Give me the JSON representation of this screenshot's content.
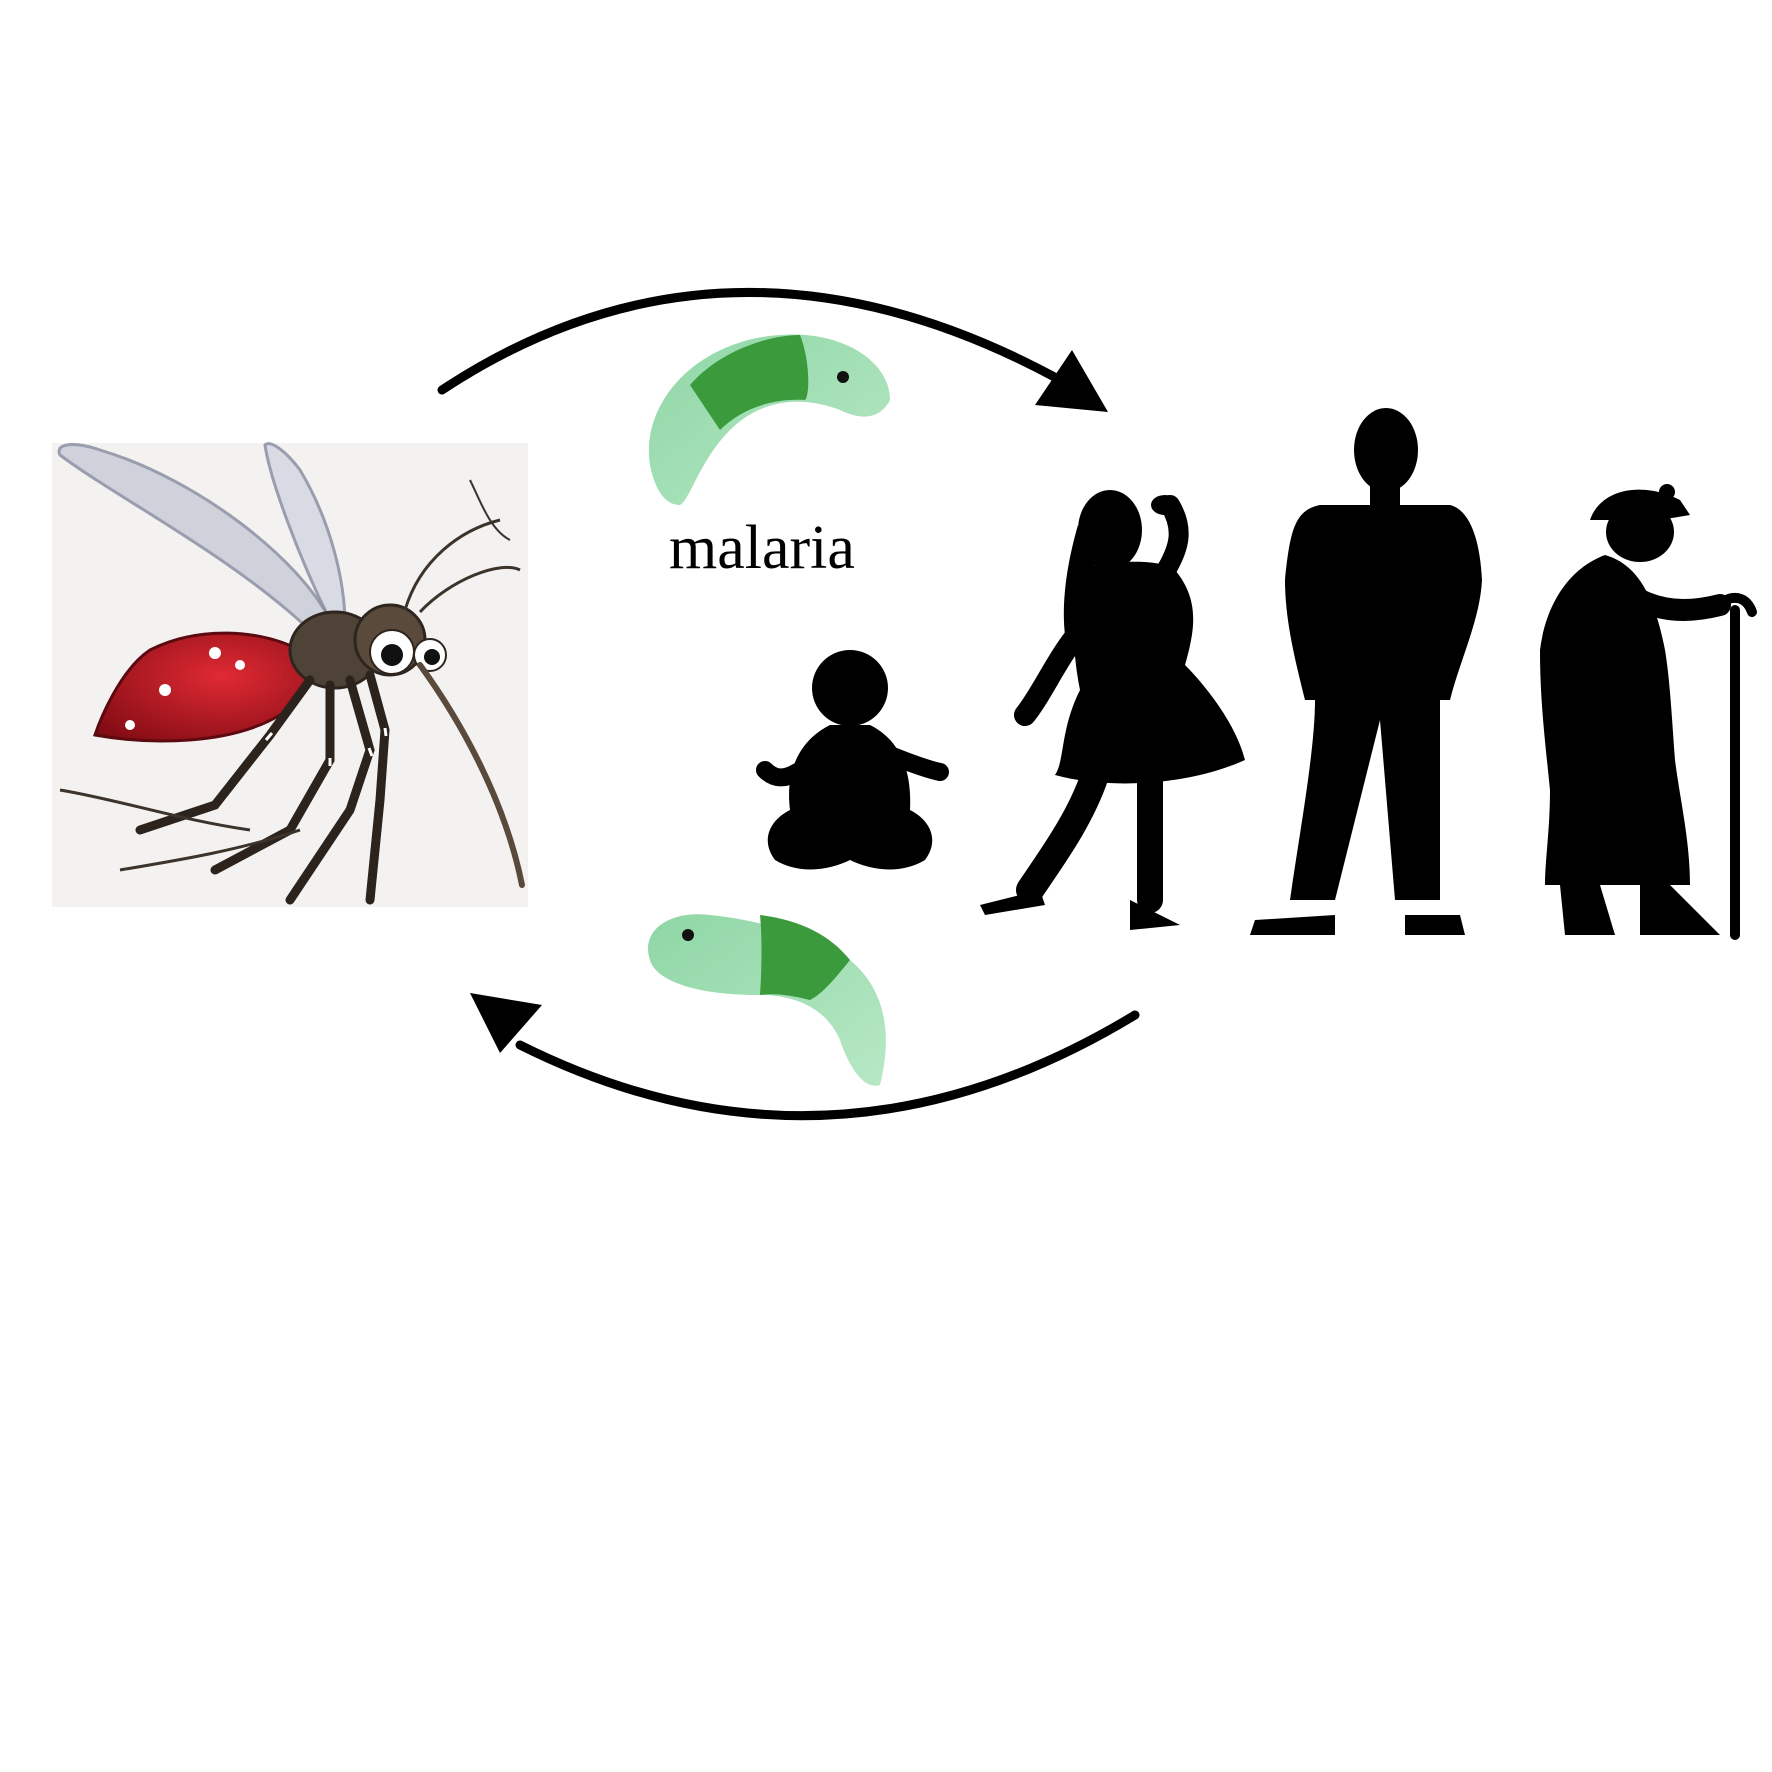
{
  "diagram": {
    "label": "malaria",
    "colors": {
      "arrow": "#000000",
      "silhouette": "#000000",
      "parasite_dark": "#3a9a3c",
      "parasite_light": "#8fd6a6",
      "mosquito_body": "#b0101c",
      "mosquito_head": "#5a4a3c",
      "mosquito_panel": "#f3f2f0"
    },
    "nodes": [
      {
        "id": "mosquito",
        "icon": "mosquito-icon"
      },
      {
        "id": "humans",
        "icon": "people-silhouettes-icon",
        "members": [
          "baby-silhouette-icon",
          "girl-silhouette-icon",
          "man-silhouette-icon",
          "elderly-woman-silhouette-icon"
        ]
      }
    ],
    "edges": [
      {
        "from": "mosquito",
        "to": "humans",
        "icon": "malaria-parasite-icon"
      },
      {
        "from": "humans",
        "to": "mosquito",
        "icon": "malaria-parasite-icon"
      }
    ]
  }
}
